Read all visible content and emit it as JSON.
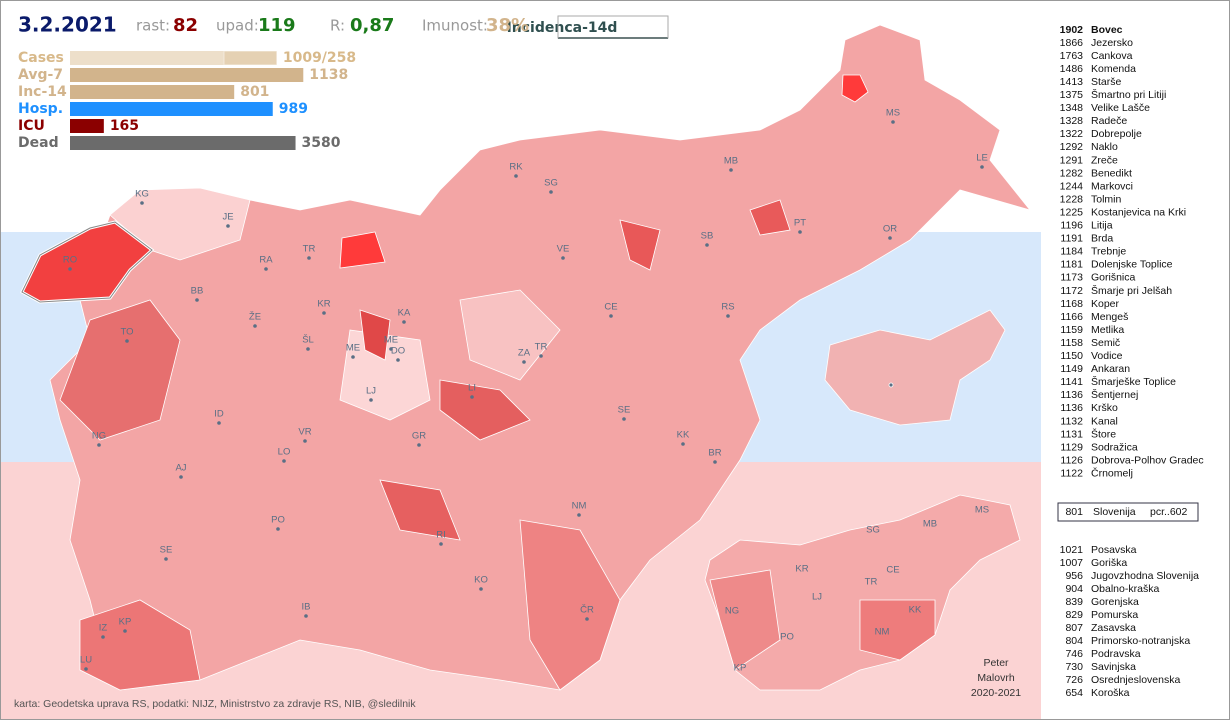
{
  "header": {
    "date": "3.2.2021",
    "rast_label": "rast:",
    "rast": 82,
    "upad_label": "upad:",
    "upad": 119,
    "r_label": "R:",
    "r": "0,87",
    "imunost_label": "Imunost:",
    "imunost": "38%",
    "mode": "Incidenca-14d"
  },
  "stats": {
    "rows": [
      {
        "label": "Cases",
        "values": [
          1009,
          258
        ],
        "value_label": "1009/258",
        "color": "#d8b98a"
      },
      {
        "label": "Avg-7",
        "values": [
          1138
        ],
        "color": "#d2b48c"
      },
      {
        "label": "Inc-14",
        "values": [
          801
        ],
        "color": "#d2b48c"
      },
      {
        "label": "Hosp.",
        "values": [
          989
        ],
        "color": "#1e90ff"
      },
      {
        "label": "ICU",
        "values": [
          165
        ],
        "color": "#8b0000"
      },
      {
        "label": "Dead",
        "values": [
          3580
        ],
        "color": "#6b6b6b"
      }
    ]
  },
  "map": {
    "labels": [
      "KG",
      "JE",
      "RO",
      "RA",
      "TR",
      "BB",
      "KR",
      "ŽE",
      "TO",
      "ŠL",
      "KA",
      "ME",
      "ME",
      "DO",
      "LJ",
      "ID",
      "VR",
      "GR",
      "NG",
      "LO",
      "AJ",
      "PO",
      "RI",
      "SE",
      "IB",
      "KO",
      "IZ",
      "KP",
      "LU",
      "ČR",
      "NM",
      "BR",
      "KK",
      "SE",
      "LI",
      "ZA",
      "TR",
      "CE",
      "RS",
      "VE",
      "SB",
      "SG",
      "RK",
      "MB",
      "PT",
      "OR",
      "MS",
      "LE"
    ],
    "region_labels": [
      "SG",
      "MB",
      "MS",
      "KR",
      "CE",
      "TR",
      "NG",
      "LJ",
      "KK",
      "PO",
      "NM",
      "KP"
    ]
  },
  "ranking": {
    "rows": [
      {
        "value": 1902,
        "name": "Bovec"
      },
      {
        "value": 1866,
        "name": "Jezersko"
      },
      {
        "value": 1763,
        "name": "Cankova"
      },
      {
        "value": 1486,
        "name": "Komenda"
      },
      {
        "value": 1413,
        "name": "Starše"
      },
      {
        "value": 1375,
        "name": "Šmartno pri Litiji"
      },
      {
        "value": 1348,
        "name": "Velike Lašče"
      },
      {
        "value": 1328,
        "name": "Radeče"
      },
      {
        "value": 1322,
        "name": "Dobrepolje"
      },
      {
        "value": 1292,
        "name": "Naklo"
      },
      {
        "value": 1291,
        "name": "Zreče"
      },
      {
        "value": 1282,
        "name": "Benedikt"
      },
      {
        "value": 1244,
        "name": "Markovci"
      },
      {
        "value": 1228,
        "name": "Tolmin"
      },
      {
        "value": 1225,
        "name": "Kostanjevica na Krki"
      },
      {
        "value": 1196,
        "name": "Litija"
      },
      {
        "value": 1191,
        "name": "Brda"
      },
      {
        "value": 1184,
        "name": "Trebnje"
      },
      {
        "value": 1181,
        "name": "Dolenjske Toplice"
      },
      {
        "value": 1173,
        "name": "Gorišnica"
      },
      {
        "value": 1172,
        "name": "Šmarje pri Jelšah"
      },
      {
        "value": 1168,
        "name": "Koper"
      },
      {
        "value": 1166,
        "name": "Mengeš"
      },
      {
        "value": 1159,
        "name": "Metlika"
      },
      {
        "value": 1158,
        "name": "Semič"
      },
      {
        "value": 1150,
        "name": "Vodice"
      },
      {
        "value": 1149,
        "name": "Ankaran"
      },
      {
        "value": 1141,
        "name": "Šmarješke Toplice"
      },
      {
        "value": 1136,
        "name": "Šentjernej"
      },
      {
        "value": 1136,
        "name": "Krško"
      },
      {
        "value": 1132,
        "name": "Kanal"
      },
      {
        "value": 1131,
        "name": "Štore"
      },
      {
        "value": 1129,
        "name": "Sodražica"
      },
      {
        "value": 1126,
        "name": "Dobrova-Polhov Gradec"
      },
      {
        "value": 1122,
        "name": "Črnomelj"
      }
    ]
  },
  "slovenia": {
    "value": 801,
    "name": "Slovenija",
    "note": "pcr..602"
  },
  "regions": {
    "rows": [
      {
        "value": 1021,
        "name": "Posavska"
      },
      {
        "value": 1007,
        "name": "Goriška"
      },
      {
        "value": 956,
        "name": "Jugovzhodna Slovenija"
      },
      {
        "value": 904,
        "name": "Obalno-kraška"
      },
      {
        "value": 839,
        "name": "Gorenjska"
      },
      {
        "value": 829,
        "name": "Pomurska"
      },
      {
        "value": 807,
        "name": "Zasavska"
      },
      {
        "value": 804,
        "name": "Primorsko-notranjska"
      },
      {
        "value": 746,
        "name": "Podravska"
      },
      {
        "value": 730,
        "name": "Savinjska"
      },
      {
        "value": 726,
        "name": "Osrednjeslovenska"
      },
      {
        "value": 654,
        "name": "Koroška"
      }
    ]
  },
  "footer": {
    "source": "karta: Geodetska uprava RS,  podatki: NIJZ, Ministrstvo za zdravje RS, NIB, @sledilnik",
    "author": [
      "Peter",
      "Malovrh",
      "2020-2021"
    ]
  }
}
